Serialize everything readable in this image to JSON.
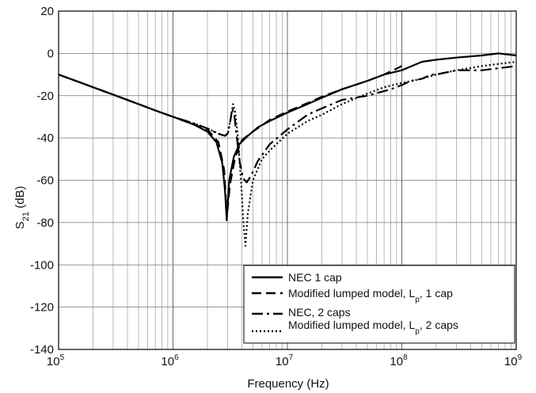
{
  "chart_data": {
    "type": "line",
    "title": "",
    "xlabel": "Frequency (Hz)",
    "ylabel": {
      "base": "S",
      "sub": "21",
      "unit": " (dB)"
    },
    "xscale": "log",
    "xlim": [
      100000,
      1000000000
    ],
    "ylim": [
      -140,
      20
    ],
    "grid": true,
    "x_ticks": [
      {
        "base": "10",
        "exp": "5",
        "value": 100000
      },
      {
        "base": "10",
        "exp": "6",
        "value": 1000000
      },
      {
        "base": "10",
        "exp": "7",
        "value": 10000000
      },
      {
        "base": "10",
        "exp": "8",
        "value": 100000000
      },
      {
        "base": "10",
        "exp": "9",
        "value": 1000000000
      }
    ],
    "y_ticks": [
      "20",
      "0",
      "-20",
      "-40",
      "-60",
      "-80",
      "-100",
      "-120",
      "-140"
    ],
    "y_tick_values": [
      20,
      0,
      -20,
      -40,
      -60,
      -80,
      -100,
      -120,
      -140
    ],
    "legend_position": "lower-right",
    "series": [
      {
        "name": "NEC 1 cap",
        "style": "solid",
        "x": [
          100000,
          150000,
          200000,
          300000,
          500000,
          700000,
          1000000,
          1500000,
          2000000,
          2400000,
          2700000,
          2850000,
          2950000,
          3100000,
          3400000,
          3800000,
          4500000,
          5500000,
          7000000,
          10000000,
          15000000,
          20000000,
          30000000,
          50000000,
          70000000,
          100000000,
          150000000,
          200000000,
          300000000,
          500000000,
          700000000,
          1000000000
        ],
        "y": [
          -10,
          -13.5,
          -16,
          -19.5,
          -24,
          -27,
          -30,
          -33.5,
          -37,
          -42,
          -52,
          -65,
          -79,
          -60,
          -49,
          -43,
          -39,
          -35,
          -32,
          -28,
          -24,
          -21,
          -17,
          -13,
          -10,
          -8,
          -4,
          -3,
          -2,
          -1,
          0,
          -1
        ]
      },
      {
        "name": "Modified lumped model, L_p, 1 cap",
        "legend": {
          "before": "Modified lumped model, L",
          "sub": "p",
          "after": ", 1 cap"
        },
        "style": "dashed",
        "x": [
          100000,
          150000,
          200000,
          300000,
          500000,
          700000,
          1000000,
          1500000,
          2000000,
          2500000,
          2800000,
          2920000,
          3000000,
          3150000,
          3500000,
          4000000,
          5000000,
          7000000,
          10000000,
          15000000,
          20000000,
          30000000,
          50000000,
          70000000,
          100000000
        ],
        "y": [
          -10,
          -13.5,
          -16,
          -19.5,
          -24,
          -27,
          -30,
          -33.5,
          -36,
          -42,
          -55,
          -71,
          -74,
          -62,
          -49,
          -41,
          -37,
          -31.5,
          -27.5,
          -23.5,
          -20.5,
          -17,
          -13,
          -10,
          -6
        ]
      },
      {
        "name": "NEC, 2 caps",
        "style": "dashdot",
        "x": [
          100000,
          150000,
          200000,
          300000,
          500000,
          700000,
          1000000,
          1500000,
          2000000,
          2500000,
          2850000,
          3000000,
          3150000,
          3300000,
          3450000,
          3600000,
          3850000,
          4100000,
          4400000,
          4800000,
          5500000,
          7000000,
          10000000,
          15000000,
          20000000,
          30000000,
          50000000,
          80000000,
          100000000,
          120000000,
          150000000,
          180000000,
          200000000,
          300000000,
          500000000,
          700000000,
          1000000000
        ],
        "y": [
          -10,
          -13.5,
          -16,
          -19.5,
          -24,
          -27,
          -30,
          -33,
          -35.5,
          -38,
          -39,
          -38,
          -33,
          -26,
          -30,
          -39,
          -52,
          -59,
          -61,
          -58,
          -51,
          -43,
          -36,
          -29,
          -26,
          -22,
          -20,
          -17,
          -15,
          -13,
          -12,
          -10,
          -10,
          -8,
          -8,
          -7,
          -6
        ]
      },
      {
        "name": "Modified lumped model, L_p, 2 caps",
        "legend": {
          "before": "Modified lumped model, L",
          "sub": "p",
          "after": ", 2 caps"
        },
        "style": "dotted",
        "x": [
          100000,
          150000,
          200000,
          300000,
          500000,
          700000,
          1000000,
          1500000,
          2000000,
          2500000,
          2850000,
          3050000,
          3200000,
          3350000,
          3500000,
          3700000,
          3950000,
          4150000,
          4300000,
          4500000,
          5000000,
          6000000,
          7000000,
          10000000,
          15000000,
          20000000,
          30000000,
          50000000,
          70000000,
          100000000,
          150000000,
          200000000,
          300000000,
          500000000,
          700000000,
          1000000000
        ],
        "y": [
          -10,
          -13.5,
          -16,
          -19.5,
          -24,
          -27,
          -30,
          -33,
          -35.5,
          -38,
          -39,
          -37,
          -30,
          -24,
          -28,
          -40,
          -62,
          -82,
          -91,
          -76,
          -60,
          -50,
          -46,
          -38,
          -32,
          -29,
          -24,
          -19,
          -16,
          -14,
          -12,
          -10,
          -8,
          -6,
          -5,
          -4
        ]
      }
    ]
  }
}
